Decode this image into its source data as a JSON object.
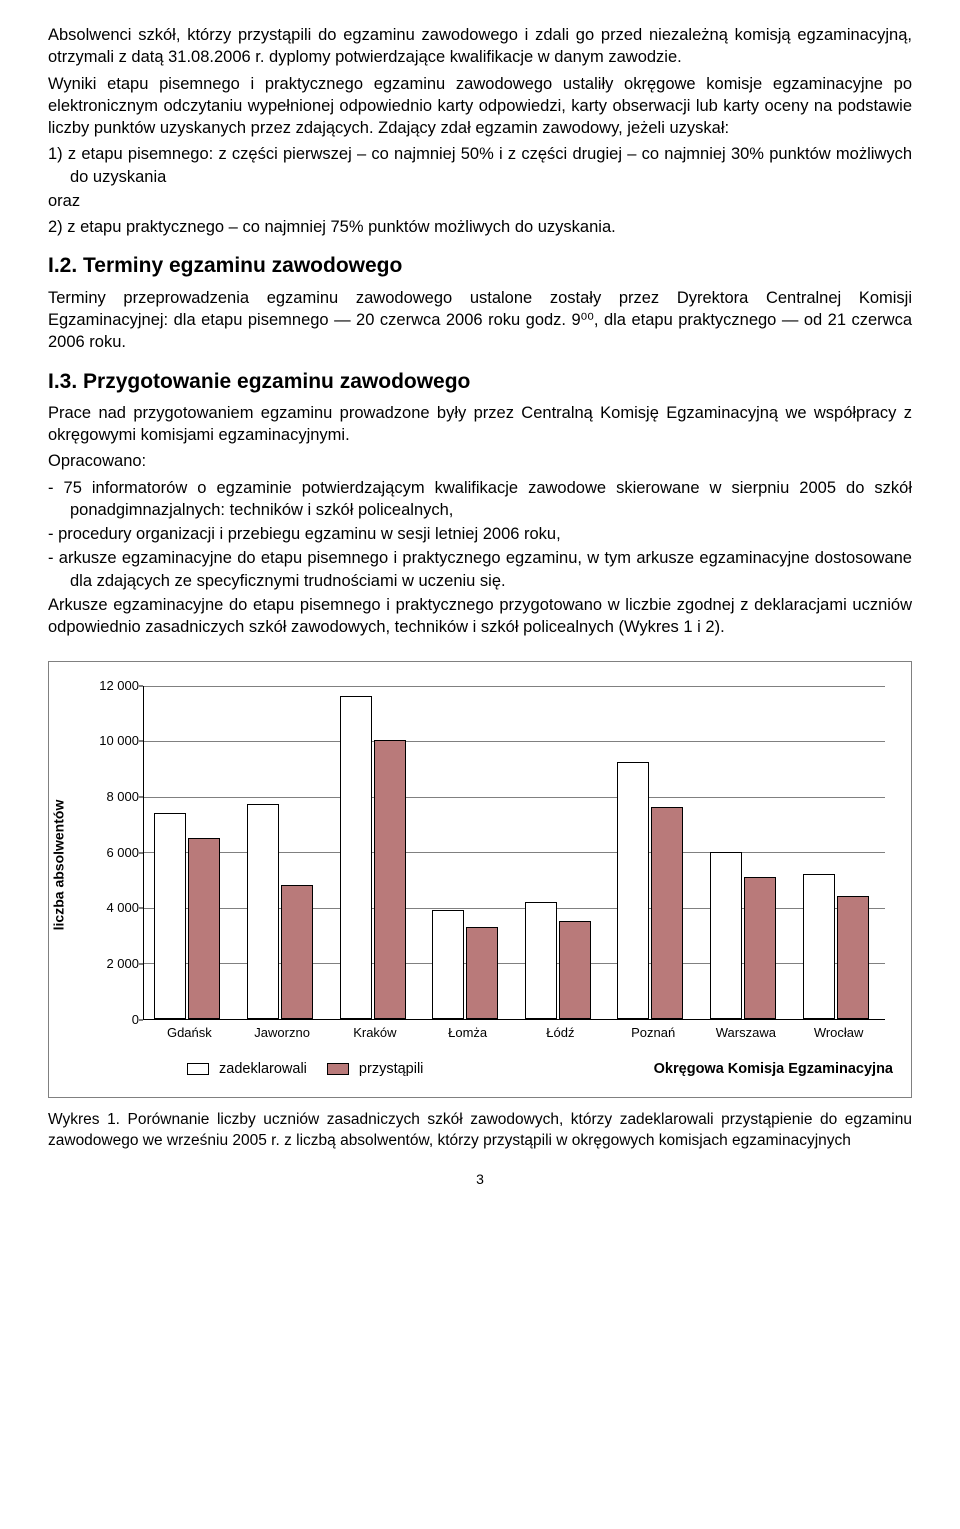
{
  "para1": "Absolwenci szkół, którzy przystąpili do egzaminu zawodowego i zdali go przed niezależną komisją egzaminacyjną, otrzymali z datą 31.08.2006 r. dyplomy potwierdzające kwalifikacje w danym zawodzie.",
  "para2": "Wyniki etapu pisemnego i praktycznego egzaminu zawodowego ustaliły okręgowe komisje egzaminacyjne po elektronicznym odczytaniu wypełnionej odpowiednio karty odpowiedzi, karty obserwacji lub karty oceny na podstawie liczby punktów uzyskanych przez zdających. Zdający zdał egzamin zawodowy, jeżeli uzyskał:",
  "list1_item1": "1)  z etapu pisemnego: z części pierwszej – co najmniej 50% i z części drugiej – co najmniej 30% punktów możliwych do uzyskania",
  "list1_oraz": "oraz",
  "list1_item2": "2)  z etapu praktycznego – co najmniej 75% punktów możliwych do uzyskania.",
  "heading2": "I.2. Terminy egzaminu zawodowego",
  "para3": "Terminy przeprowadzenia egzaminu zawodowego ustalone zostały przez Dyrektora Centralnej Komisji Egzaminacyjnej: dla etapu pisemnego — 20 czerwca 2006 roku godz. 9⁰⁰, dla etapu praktycznego — od 21 czerwca 2006 roku.",
  "heading3": "I.3. Przygotowanie egzaminu zawodowego",
  "para4": "Prace nad przygotowaniem egzaminu prowadzone były przez Centralną Komisję Egzaminacyjną we współpracy z okręgowymi komisjami egzaminacyjnymi.",
  "para5": "Opracowano:",
  "dash1": "-   75 informatorów o egzaminie potwierdzającym kwalifikacje zawodowe skierowane w sierpniu 2005 do szkół ponadgimnazjalnych: techników i szkół policealnych,",
  "dash2": "-   procedury organizacji i przebiegu egzaminu w sesji letniej 2006 roku,",
  "dash3": "-   arkusze egzaminacyjne do etapu pisemnego i praktycznego egzaminu, w tym arkusze egzaminacyjne dostosowane dla zdających ze specyficznymi trudnościami w uczeniu się.",
  "para6": "Arkusze egzaminacyjne do etapu pisemnego i praktycznego przygotowano w liczbie zgodnej z deklaracjami uczniów odpowiednio zasadniczych szkół zawodowych, techników i szkół policealnych (Wykres 1 i 2).",
  "chart": {
    "type": "bar",
    "y_label": "liczba absolwentów",
    "categories": [
      "Gdańsk",
      "Jaworzno",
      "Kraków",
      "Łomża",
      "Łódź",
      "Poznań",
      "Warszawa",
      "Wrocław"
    ],
    "series": [
      {
        "name": "zadeklarowali",
        "color": "#ffffff",
        "values": [
          7400,
          7700,
          11600,
          3900,
          4200,
          9200,
          6000,
          5200
        ]
      },
      {
        "name": "przystąpili",
        "color": "#b97a7a",
        "values": [
          6500,
          4800,
          10000,
          3300,
          3500,
          7600,
          5100,
          4400
        ]
      }
    ],
    "ymin": 0,
    "ymax": 12000,
    "ytick_step": 2000,
    "bar_border": "#000000",
    "grid_color": "#808080",
    "legend_right": "Okręgowa Komisja Egzaminacyjna"
  },
  "caption_no": "Wykres 1.",
  "caption_text": "Porównanie liczby uczniów zasadniczych szkół zawodowych, którzy zadeklarowali przystąpienie do egzaminu zawodowego we wrześniu 2005 r. z liczbą absolwentów, którzy przystąpili w okręgowych komisjach egzaminacyjnych",
  "page_number": "3"
}
